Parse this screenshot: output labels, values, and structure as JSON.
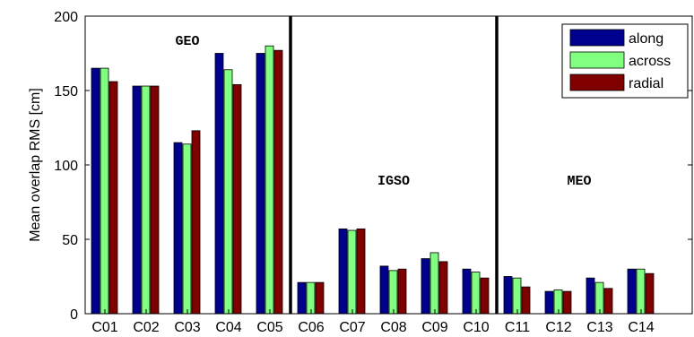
{
  "chart_data": {
    "type": "bar",
    "ylabel": "Mean overlap RMS [cm]",
    "xlabel": "",
    "ylim": [
      0,
      200
    ],
    "yticks": [
      0,
      50,
      100,
      150,
      200
    ],
    "categories": [
      "C01",
      "C02",
      "C03",
      "C04",
      "C05",
      "C06",
      "C07",
      "C08",
      "C09",
      "C10",
      "C11",
      "C12",
      "C13",
      "C14"
    ],
    "series": [
      {
        "name": "along",
        "color": "#00008f",
        "values": [
          165,
          153,
          115,
          175,
          175,
          21,
          57,
          32,
          37,
          30,
          25,
          15,
          24,
          30
        ]
      },
      {
        "name": "across",
        "color": "#80ff80",
        "values": [
          165,
          153,
          114,
          164,
          180,
          21,
          56,
          29,
          41,
          28,
          24,
          16,
          21,
          30
        ]
      },
      {
        "name": "radial",
        "color": "#800000",
        "values": [
          156,
          153,
          123,
          154,
          177,
          21,
          57,
          30,
          35,
          24,
          18,
          15,
          17,
          27
        ]
      }
    ],
    "groups": [
      {
        "label": "GEO",
        "category_index": 2
      },
      {
        "label": "IGSO",
        "category_index": 7
      },
      {
        "label": "MEO",
        "category_index": 11
      }
    ],
    "separators_after": [
      "C05",
      "C10"
    ],
    "legend": {
      "position": "top-right"
    },
    "grid": false
  }
}
